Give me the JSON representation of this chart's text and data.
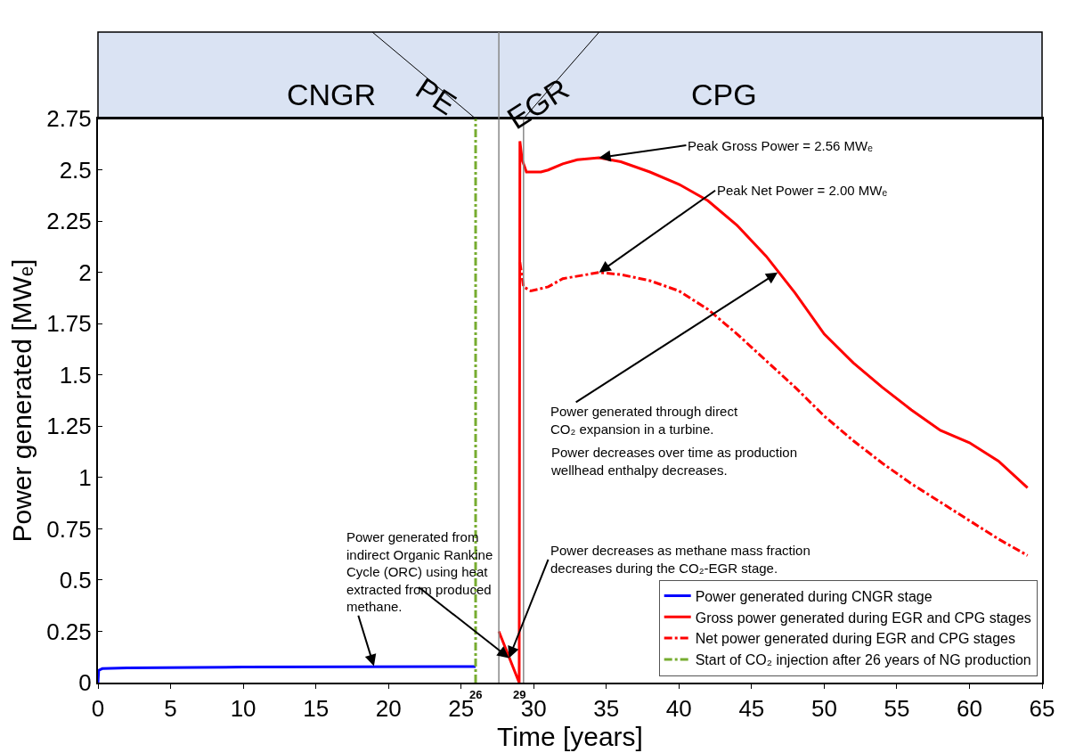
{
  "chart_data": {
    "type": "line",
    "xlabel": "Time [years]",
    "ylabel": "Power generated [MWₑ]",
    "xlim": [
      0,
      65
    ],
    "xticks": [
      0,
      5,
      10,
      15,
      20,
      25,
      30,
      35,
      40,
      45,
      50,
      55,
      60,
      65
    ],
    "ylim": [
      0,
      2.75
    ],
    "yticks": [
      0,
      0.25,
      0.5,
      0.75,
      1,
      1.25,
      1.5,
      1.75,
      2,
      2.25,
      2.5,
      2.75
    ],
    "grid": false,
    "legend": "bottom right",
    "marker": "none",
    "series": [
      {
        "name": "Power generated during CNGR stage",
        "color": "#0000ff",
        "line_style": "solid",
        "x": [
          0,
          0.05,
          0.3,
          2,
          10,
          26
        ],
        "values": [
          0,
          0.06,
          0.068,
          0.072,
          0.076,
          0.078
        ]
      },
      {
        "name": "Gross power generated during EGR and CPG stages",
        "color": "#ff0000",
        "line_style": "solid",
        "x": [
          27.6,
          29,
          29.05,
          29.2,
          29.5,
          30.5,
          31,
          32,
          33,
          34.5,
          36,
          38,
          40,
          42,
          44,
          46,
          48,
          50,
          52,
          54,
          56,
          58,
          60,
          62,
          64
        ],
        "values": [
          0.25,
          0,
          2.64,
          2.55,
          2.49,
          2.49,
          2.5,
          2.53,
          2.55,
          2.56,
          2.54,
          2.49,
          2.43,
          2.35,
          2.23,
          2.08,
          1.9,
          1.7,
          1.56,
          1.44,
          1.33,
          1.23,
          1.17,
          1.08,
          0.95
        ]
      },
      {
        "name": "Net power generated during EGR and CPG stages",
        "color": "#ff0000",
        "line_style": "dashdot",
        "x": [
          29.05,
          29.3,
          29.8,
          31,
          32,
          34.5,
          36,
          38,
          40,
          42,
          44,
          46,
          48,
          50,
          52,
          54,
          56,
          58,
          60,
          62,
          64
        ],
        "values": [
          2.05,
          1.93,
          1.91,
          1.93,
          1.97,
          2.0,
          1.99,
          1.96,
          1.91,
          1.82,
          1.7,
          1.57,
          1.44,
          1.3,
          1.18,
          1.07,
          0.97,
          0.88,
          0.79,
          0.7,
          0.62
        ]
      },
      {
        "name": "Start of CO₂ injection after 26 years of NG production",
        "color": "#77ac30",
        "line_style": "dashdot",
        "x": [
          26,
          26
        ],
        "values": [
          0,
          2.75
        ]
      }
    ],
    "ref_lines": [
      {
        "axis": "x",
        "value": 27.6,
        "color": "#888888",
        "line_style": "solid"
      },
      {
        "axis": "x",
        "value": 29.3,
        "color": "#888888",
        "line_style": "solid"
      }
    ],
    "annotations": [
      "CNGR",
      "PE",
      "EGR",
      "CPG",
      {
        "text": "26",
        "x": 26,
        "y": 0
      },
      {
        "text": "29",
        "x": 29,
        "y": 0
      },
      {
        "text": "Peak Gross Power = 2.56 MWₑ",
        "x": 34.5,
        "y": 2.56
      },
      {
        "text": "Peak Net Power = 2.00 MWₑ",
        "x": 34.5,
        "y": 2.0
      },
      {
        "text": "Power generated through direct\nCO₂ expansion in a turbine.",
        "x": 46.8,
        "y": 2.0
      },
      "Power decreases over time as production\nwellhead enthalpy decreases.",
      {
        "text": "Power decreases as methane mass fraction\ndecreases during the CO₂-EGR stage.",
        "x": 28.3,
        "y": 0.12
      },
      {
        "text": "Power generated from\nindirect Organic Rankine\nCycle (ORC) using heat\nextracted from produced\nmethane.",
        "x": 19,
        "y": 0.08
      }
    ]
  }
}
